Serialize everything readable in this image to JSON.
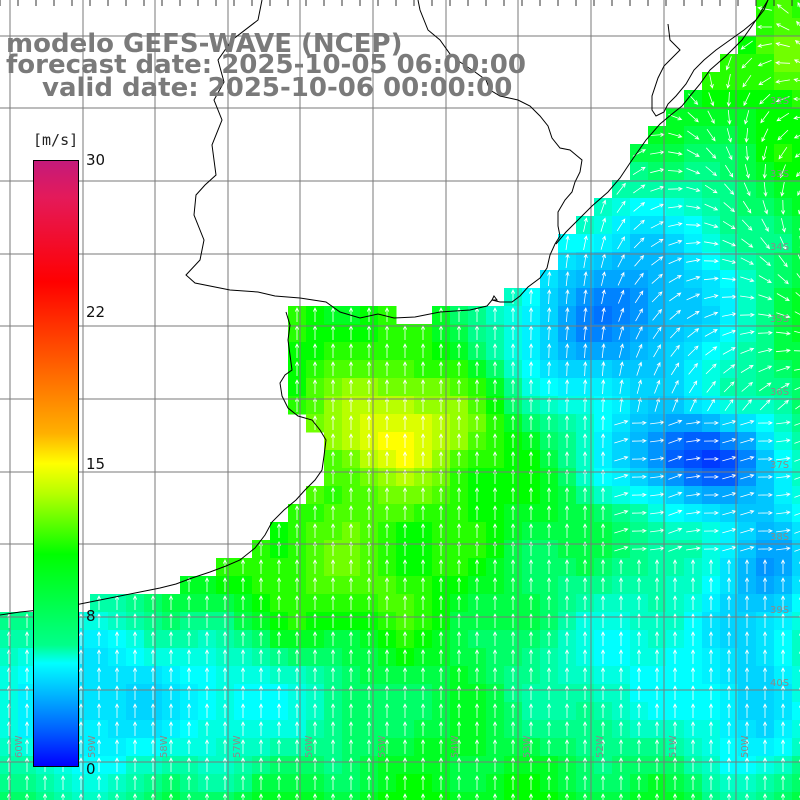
{
  "titles": {
    "line1": "modelo GEFS-WAVE (NCEP)",
    "line2": "forecast date: 2025-10-05 06:00:00",
    "line3": "valid date: 2025-10-06 00:00:00"
  },
  "colorbar": {
    "units": "[m/s]",
    "ticks": [
      "30",
      "22",
      "15",
      "8",
      "0"
    ],
    "range": [
      0,
      30
    ]
  },
  "axes": {
    "lon_labels": [
      "60W",
      "59W",
      "58W",
      "57W",
      "56W",
      "55W",
      "54W",
      "53W",
      "52W",
      "51W",
      "50W"
    ],
    "lat_labels": [
      "32S",
      "33S",
      "34S",
      "35S",
      "36S",
      "37S",
      "38S",
      "39S",
      "40S"
    ]
  }
}
